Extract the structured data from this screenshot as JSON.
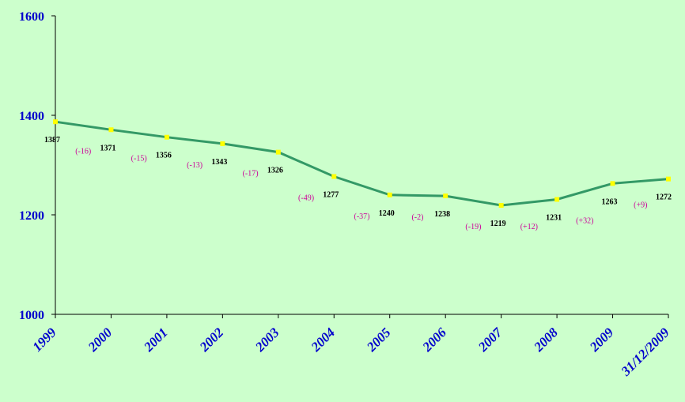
{
  "chart_data": {
    "type": "line",
    "title": "",
    "xlabel": "",
    "ylabel": "",
    "categories": [
      "1999",
      "2000",
      "2001",
      "2002",
      "2003",
      "2004",
      "2005",
      "2006",
      "2007",
      "2008",
      "2009",
      "31/12/2009"
    ],
    "series": [
      {
        "values": [
          1387,
          1371,
          1356,
          1343,
          1326,
          1277,
          1240,
          1238,
          1219,
          1231,
          1263,
          1272
        ],
        "value_labels": [
          "1387",
          "1371",
          "1356",
          "1343",
          "1326",
          "1277",
          "1240",
          "1238",
          "1219",
          "1231",
          "1263",
          "1272"
        ],
        "change_labels": [
          "(-16)",
          "(-15)",
          "(-13)",
          "(-17)",
          "(-49)",
          "(-37)",
          "(-2)",
          "(-19)",
          "(+12)",
          "(+32)",
          "(+9)"
        ]
      }
    ],
    "ylim": [
      1000,
      1600
    ],
    "yticks": [
      1000,
      1200,
      1400,
      1600
    ],
    "ytick_labels": [
      "1000",
      "1200",
      "1400",
      "1600"
    ],
    "grid": false,
    "legend": "none",
    "colors": {
      "background": "#ccffcc",
      "line": "#339966",
      "marker": "#ffff00",
      "axis": "#000000",
      "tick_label": "#0000cc",
      "value_label": "#000000",
      "change_label": "#cc0099"
    }
  }
}
